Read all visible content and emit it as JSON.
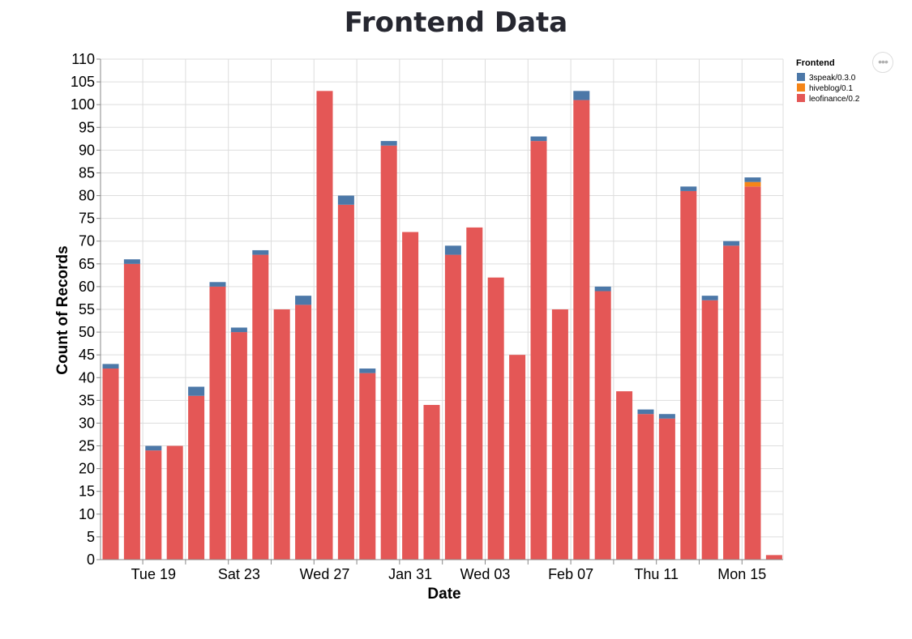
{
  "chart_data": {
    "type": "bar",
    "title": "Frontend Data",
    "xlabel": "Date",
    "ylabel": "Count of Records",
    "ylim": [
      0,
      110
    ],
    "yticks": [
      0,
      5,
      10,
      15,
      20,
      25,
      30,
      35,
      40,
      45,
      50,
      55,
      60,
      65,
      70,
      75,
      80,
      85,
      90,
      95,
      100,
      105,
      110
    ],
    "x_tick_labels": [
      "Tue 19",
      "Sat 23",
      "Wed 27",
      "Jan 31",
      "Wed 03",
      "Feb 07",
      "Thu 11",
      "Mon 15"
    ],
    "x_tick_positions": [
      2,
      6,
      10,
      14,
      17.5,
      21.5,
      25.5,
      29.5
    ],
    "stacked": true,
    "grid": true,
    "legend": {
      "title": "Frontend",
      "position": "top-right"
    },
    "colors": {
      "3speak/0.3.0": "#4c78a8",
      "hiveblog/0.1": "#f58518",
      "leofinance/0.2": "#e45756"
    },
    "series": [
      {
        "name": "leofinance/0.2",
        "values": [
          42,
          65,
          24,
          25,
          36,
          60,
          50,
          67,
          55,
          56,
          103,
          78,
          41,
          91,
          72,
          34,
          67,
          73,
          62,
          45,
          92,
          55,
          101,
          59,
          37,
          32,
          31,
          81,
          57,
          69,
          82,
          1
        ]
      },
      {
        "name": "hiveblog/0.1",
        "values": [
          0,
          0,
          0,
          0,
          0,
          0,
          0,
          0,
          0,
          0,
          0,
          0,
          0,
          0,
          0,
          0,
          0,
          0,
          0,
          0,
          0,
          0,
          0,
          0,
          0,
          0,
          0,
          0,
          0,
          0,
          1,
          0
        ]
      },
      {
        "name": "3speak/0.3.0",
        "values": [
          1,
          1,
          1,
          0,
          2,
          1,
          1,
          1,
          0,
          2,
          0,
          2,
          1,
          1,
          0,
          0,
          2,
          0,
          0,
          0,
          1,
          0,
          2,
          1,
          0,
          1,
          1,
          1,
          1,
          1,
          1,
          0
        ]
      }
    ]
  },
  "ui": {
    "more_button_label": "•••"
  }
}
